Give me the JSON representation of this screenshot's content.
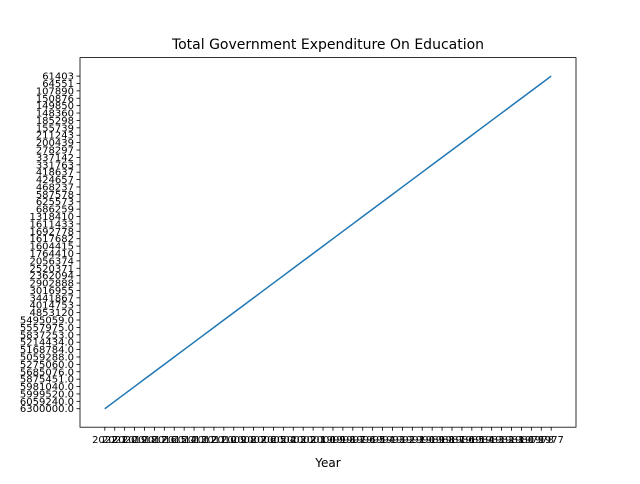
{
  "chart_data": {
    "type": "line",
    "title": "Total Government Expenditure On Education",
    "xlabel": "Year",
    "categories": [
      "2022",
      "2021",
      "2020",
      "2019",
      "2018",
      "2017",
      "2016",
      "2015",
      "2014",
      "2013",
      "2012",
      "2011",
      "2010",
      "2009",
      "2008",
      "2007",
      "2006",
      "2005",
      "2004",
      "2003",
      "2002",
      "2001",
      "2000",
      "1999",
      "1998",
      "1997",
      "1996",
      "1995",
      "1994",
      "1993",
      "1992",
      "1991",
      "1990",
      "1989",
      "1988",
      "1987",
      "1986",
      "1985",
      "1984",
      "1983",
      "1982",
      "1981",
      "1980",
      "1979",
      "1978",
      "1977"
    ],
    "series": [
      {
        "color": "#1f77b4",
        "values": [
          "6300000.0",
          "6059240.0",
          "5999520.0",
          "5981040.0",
          "5875451.0",
          "5685076.0",
          "5275060.0",
          "5059288.0",
          "5168784.0",
          "5214434.0",
          "5837253.0",
          "5557975.0",
          "5495059.0",
          "4853120",
          "4014753",
          "3441867",
          "3016955",
          "2902888",
          "2362094",
          "2520371",
          "2056374",
          "1764410",
          "1604415",
          "1617682",
          "1692778",
          "1611433",
          "1318410",
          "686259",
          "625573",
          "587578",
          "468237",
          "424657",
          "418637",
          "331763",
          "337142",
          "278297",
          "200439",
          "211243",
          "155739",
          "185298",
          "148360",
          "149850",
          "150876",
          "107890",
          "64551",
          "61403"
        ]
      }
    ]
  }
}
